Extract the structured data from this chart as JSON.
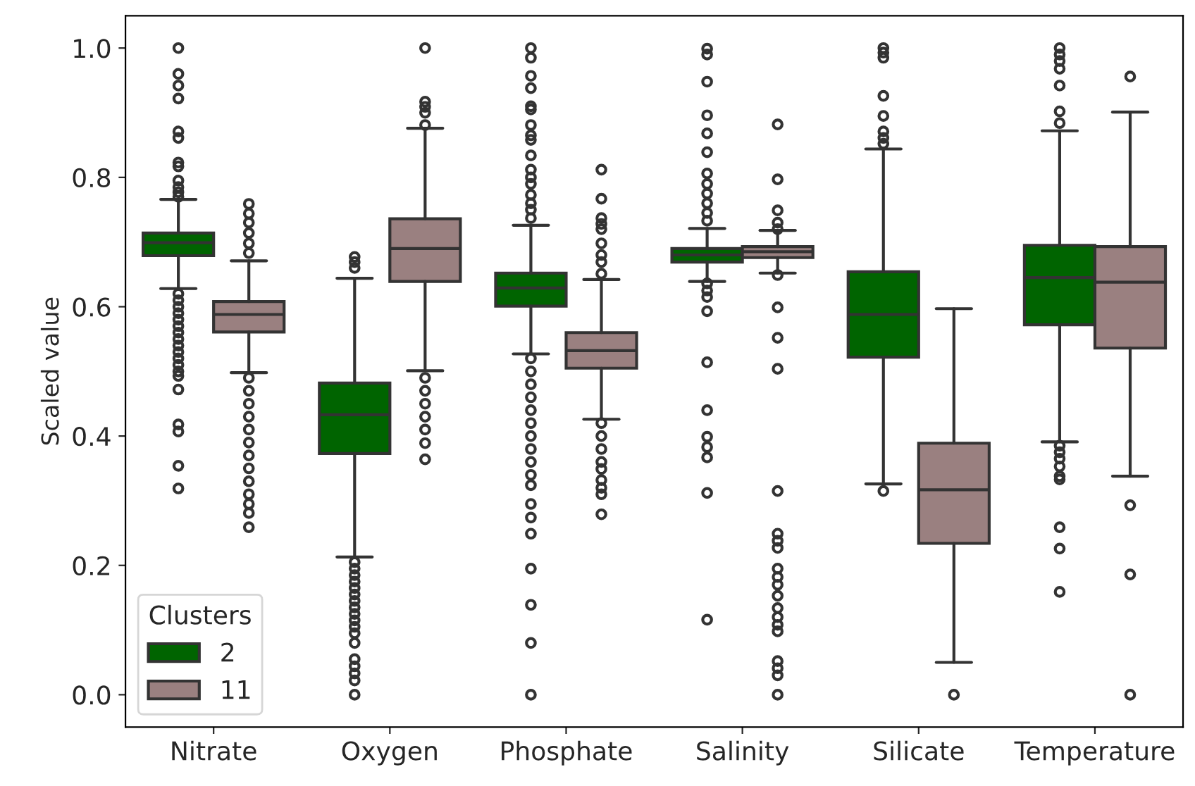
{
  "chart_data": {
    "type": "box",
    "ylabel": "Scaled value",
    "legend_title": "Clusters",
    "legend": "bottom left",
    "categories": [
      "Nitrate",
      "Oxygen",
      "Phosphate",
      "Salinity",
      "Silicate",
      "Temperature"
    ],
    "ylim": [
      -0.05,
      1.05
    ],
    "yticks": [
      {
        "value": 0,
        "label": "0.0"
      },
      0.2,
      0.4,
      0.6,
      0.8,
      {
        "value": 1,
        "label": "1.0"
      }
    ],
    "series": [
      {
        "name": "2",
        "color": "#006400",
        "boxes": [
          {
            "low": 0.628,
            "q1": 0.679,
            "median": 0.699,
            "q3": 0.714,
            "high": 0.766,
            "outliers": [
              1.0,
              0.96,
              0.942,
              0.922,
              0.871,
              0.861,
              0.823,
              0.817,
              0.795,
              0.785,
              0.777,
              0.77,
              0.62,
              0.61,
              0.6,
              0.59,
              0.58,
              0.57,
              0.56,
              0.55,
              0.54,
              0.53,
              0.52,
              0.51,
              0.5,
              0.493,
              0.472,
              0.418,
              0.407,
              0.354,
              0.319
            ]
          },
          {
            "low": 0.213,
            "q1": 0.373,
            "median": 0.433,
            "q3": 0.482,
            "high": 0.644,
            "outliers": [
              0.677,
              0.669,
              0.66,
              0.205,
              0.195,
              0.185,
              0.175,
              0.165,
              0.155,
              0.145,
              0.135,
              0.125,
              0.115,
              0.105,
              0.095,
              0.08,
              0.055,
              0.044,
              0.033,
              0.022,
              0.0
            ]
          },
          {
            "low": 0.527,
            "q1": 0.601,
            "median": 0.629,
            "q3": 0.652,
            "high": 0.726,
            "outliers": [
              1.0,
              0.985,
              0.957,
              0.938,
              0.91,
              0.905,
              0.881,
              0.865,
              0.858,
              0.834,
              0.812,
              0.8,
              0.79,
              0.773,
              0.76,
              0.75,
              0.737,
              0.52,
              0.5,
              0.48,
              0.46,
              0.44,
              0.42,
              0.4,
              0.38,
              0.36,
              0.34,
              0.324,
              0.295,
              0.274,
              0.249,
              0.195,
              0.139,
              0.08,
              0.0
            ]
          },
          {
            "low": 0.639,
            "q1": 0.669,
            "median": 0.68,
            "q3": 0.69,
            "high": 0.721,
            "outliers": [
              0.999,
              0.99,
              0.948,
              0.896,
              0.868,
              0.839,
              0.806,
              0.79,
              0.775,
              0.76,
              0.745,
              0.733,
              0.636,
              0.625,
              0.615,
              0.593,
              0.514,
              0.44,
              0.399,
              0.383,
              0.367,
              0.312,
              0.116
            ]
          },
          {
            "low": 0.326,
            "q1": 0.522,
            "median": 0.588,
            "q3": 0.654,
            "high": 0.844,
            "outliers": [
              1.0,
              0.993,
              0.985,
              0.926,
              0.895,
              0.871,
              0.861,
              0.852,
              0.315
            ]
          },
          {
            "low": 0.391,
            "q1": 0.572,
            "median": 0.645,
            "q3": 0.695,
            "high": 0.872,
            "outliers": [
              1.0,
              0.99,
              0.98,
              0.968,
              0.942,
              0.902,
              0.884,
              0.385,
              0.375,
              0.365,
              0.353,
              0.338,
              0.333,
              0.259,
              0.226,
              0.159
            ]
          }
        ]
      },
      {
        "name": "11",
        "color": "#9a8080",
        "boxes": [
          {
            "low": 0.498,
            "q1": 0.561,
            "median": 0.588,
            "q3": 0.608,
            "high": 0.671,
            "outliers": [
              0.759,
              0.744,
              0.73,
              0.714,
              0.698,
              0.683,
              0.49,
              0.47,
              0.45,
              0.43,
              0.41,
              0.39,
              0.37,
              0.35,
              0.33,
              0.31,
              0.295,
              0.281,
              0.259
            ]
          },
          {
            "low": 0.501,
            "q1": 0.639,
            "median": 0.69,
            "q3": 0.736,
            "high": 0.876,
            "outliers": [
              1.0,
              0.917,
              0.909,
              0.9,
              0.881,
              0.49,
              0.47,
              0.45,
              0.43,
              0.41,
              0.389,
              0.364
            ]
          },
          {
            "low": 0.426,
            "q1": 0.505,
            "median": 0.532,
            "q3": 0.56,
            "high": 0.642,
            "outliers": [
              0.812,
              0.767,
              0.737,
              0.728,
              0.72,
              0.698,
              0.68,
              0.669,
              0.651,
              0.42,
              0.4,
              0.38,
              0.36,
              0.349,
              0.332,
              0.32,
              0.31,
              0.279
            ]
          },
          {
            "low": 0.652,
            "q1": 0.676,
            "median": 0.685,
            "q3": 0.693,
            "high": 0.718,
            "outliers": [
              0.882,
              0.797,
              0.749,
              0.73,
              0.72,
              0.649,
              0.599,
              0.552,
              0.504,
              0.315,
              0.249,
              0.238,
              0.227,
              0.195,
              0.182,
              0.17,
              0.153,
              0.134,
              0.12,
              0.108,
              0.098,
              0.052,
              0.041,
              0.03,
              0.0
            ]
          },
          {
            "low": 0.05,
            "q1": 0.234,
            "median": 0.317,
            "q3": 0.389,
            "high": 0.597,
            "outliers": [
              0.0
            ]
          },
          {
            "low": 0.338,
            "q1": 0.536,
            "median": 0.638,
            "q3": 0.693,
            "high": 0.901,
            "outliers": [
              0.956,
              0.293,
              0.186,
              0.0
            ]
          }
        ]
      }
    ]
  }
}
